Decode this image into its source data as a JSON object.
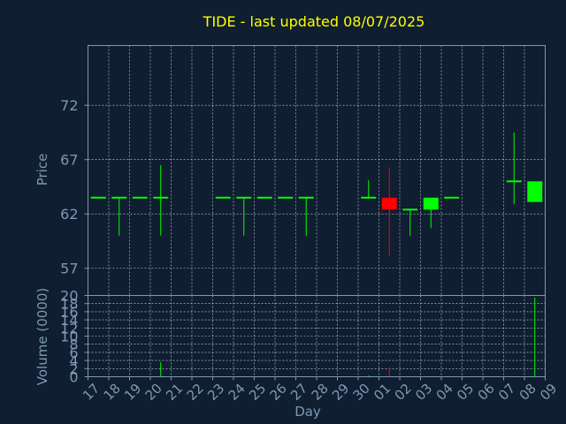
{
  "chart_data": [
    {
      "type": "candlestick",
      "title": "TIDE - last updated 08/07/2025",
      "ylabel": "Price",
      "yticks": [
        57,
        62,
        67,
        72
      ],
      "ylim": [
        54.5,
        77.5
      ],
      "grid": true,
      "colors": {
        "up": "#00ff00",
        "down": "#ff0000",
        "background": "#0f1e30",
        "axes": "#7f98b4",
        "title": "#ffff00"
      },
      "x": [
        "17",
        "18",
        "19",
        "20",
        "21",
        "22",
        "23",
        "24",
        "25",
        "26",
        "27",
        "28",
        "29",
        "30",
        "01",
        "02",
        "03",
        "04",
        "05",
        "06",
        "07",
        "08",
        "09"
      ],
      "candles": [
        {
          "x": "17",
          "open": 63.5,
          "high": 63.5,
          "low": 63.5,
          "close": 63.5
        },
        {
          "x": "18",
          "open": 63.5,
          "high": 63.5,
          "low": 60.0,
          "close": 63.5
        },
        {
          "x": "19",
          "open": 63.5,
          "high": 63.5,
          "low": 63.5,
          "close": 63.5
        },
        {
          "x": "20",
          "open": 63.5,
          "high": 66.5,
          "low": 60.0,
          "close": 63.5
        },
        {
          "x": "23",
          "open": 63.5,
          "high": 63.5,
          "low": 63.5,
          "close": 63.5
        },
        {
          "x": "24",
          "open": 63.5,
          "high": 63.5,
          "low": 60.0,
          "close": 63.5
        },
        {
          "x": "25",
          "open": 63.5,
          "high": 63.5,
          "low": 63.5,
          "close": 63.5
        },
        {
          "x": "26",
          "open": 63.5,
          "high": 63.5,
          "low": 63.5,
          "close": 63.5
        },
        {
          "x": "27",
          "open": 63.5,
          "high": 63.5,
          "low": 60.0,
          "close": 63.5
        },
        {
          "x": "30",
          "open": 63.5,
          "high": 65.1,
          "low": 63.5,
          "close": 63.5
        },
        {
          "x": "01",
          "open": 63.5,
          "high": 66.3,
          "low": 58.1,
          "close": 62.4
        },
        {
          "x": "02",
          "open": 62.4,
          "high": 62.4,
          "low": 60.0,
          "close": 62.4
        },
        {
          "x": "03",
          "open": 62.4,
          "high": 63.5,
          "low": 60.7,
          "close": 63.5
        },
        {
          "x": "04",
          "open": 63.5,
          "high": 63.5,
          "low": 63.5,
          "close": 63.5
        },
        {
          "x": "07",
          "open": 65.0,
          "high": 69.5,
          "low": 62.9,
          "close": 65.0
        },
        {
          "x": "08",
          "open": 63.1,
          "high": 65.0,
          "low": 63.1,
          "close": 65.0
        }
      ]
    },
    {
      "type": "bar",
      "ylabel": "Volume (0000)",
      "xlabel": "Day",
      "yticks": [
        0,
        2,
        4,
        6,
        8,
        10,
        12,
        14,
        16,
        18,
        20
      ],
      "ylim": [
        0,
        20
      ],
      "grid": true,
      "x": [
        "17",
        "18",
        "19",
        "20",
        "21",
        "22",
        "23",
        "24",
        "25",
        "26",
        "27",
        "28",
        "29",
        "30",
        "01",
        "02",
        "03",
        "04",
        "05",
        "06",
        "07",
        "08",
        "09"
      ],
      "bars": [
        {
          "x": "20",
          "value": 3.6,
          "color": "#00ff00"
        },
        {
          "x": "30",
          "value": 0.3,
          "color": "#00ff00"
        },
        {
          "x": "01",
          "value": 2.3,
          "color": "#ff0000"
        },
        {
          "x": "08",
          "value": 19.5,
          "color": "#00ff00"
        }
      ]
    }
  ]
}
